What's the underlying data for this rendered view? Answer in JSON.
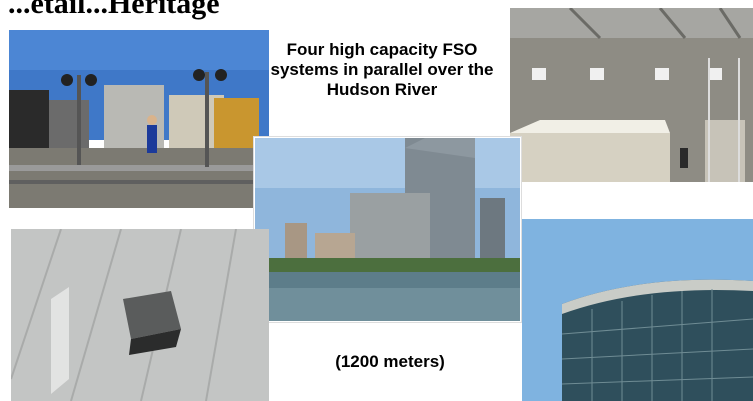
{
  "slide": {
    "title": "...etail...Heritage",
    "caption_top": "Four high capacity FSO systems in parallel over the Hudson River",
    "caption_bottom": "(1200 meters)"
  },
  "photos": [
    "rooftop-fso-installation-photo",
    "building-interior-fso-mounts-photo",
    "hudson-river-skyline-photo",
    "rooftop-vent-closeup-photo",
    "glass-building-facade-photo"
  ]
}
